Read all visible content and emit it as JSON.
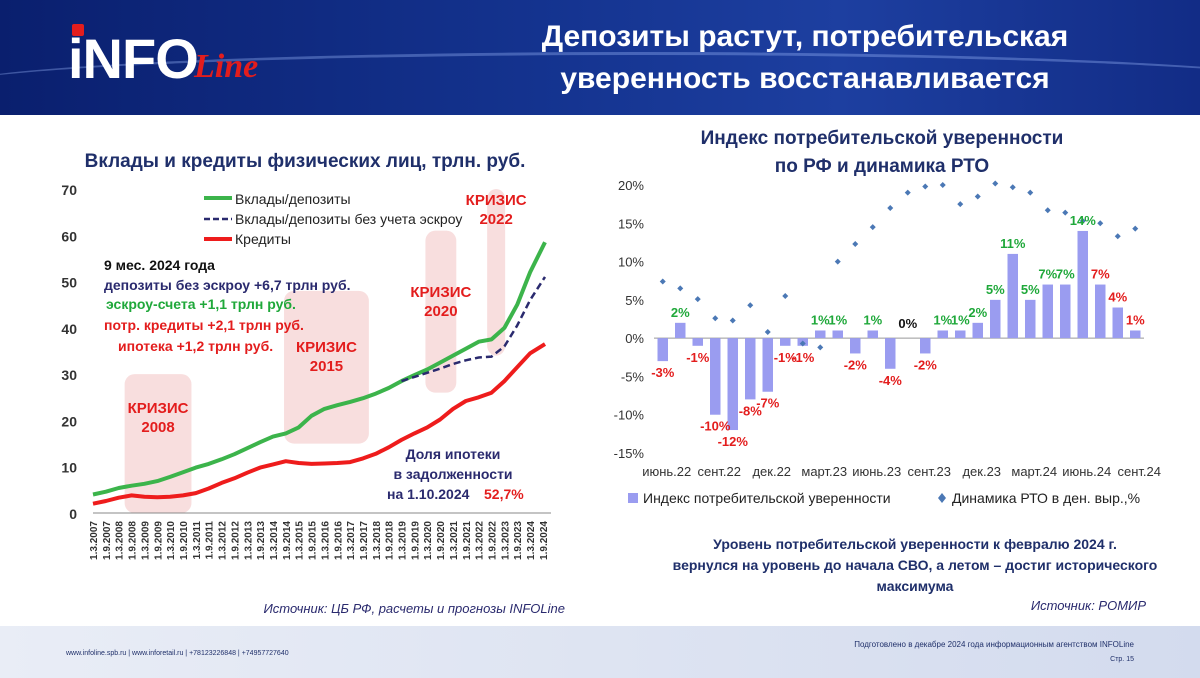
{
  "header": {
    "title_line1": "Депозиты растут, потребительская",
    "title_line2": "уверенность восстанавливается",
    "logo_main": "iNFO",
    "logo_script": "Line"
  },
  "left_chart": {
    "title": "Вклады и кредиты физических лиц, трлн. руб.",
    "ylim": [
      0,
      70
    ],
    "yticks": [
      "0",
      "10",
      "20",
      "30",
      "40",
      "50",
      "60",
      "70"
    ],
    "xticks": [
      "1.3.2007",
      "1.9.2007",
      "1.3.2008",
      "1.9.2008",
      "1.3.2009",
      "1.9.2009",
      "1.3.2010",
      "1.9.2010",
      "1.3.2011",
      "1.9.2011",
      "1.3.2012",
      "1.9.2012",
      "1.3.2013",
      "1.9.2013",
      "1.3.2014",
      "1.9.2014",
      "1.3.2015",
      "1.9.2015",
      "1.3.2016",
      "1.9.2016",
      "1.3.2017",
      "1.9.2017",
      "1.3.2018",
      "1.9.2018",
      "1.3.2019",
      "1.9.2019",
      "1.3.2020",
      "1.9.2020",
      "1.3.2021",
      "1.9.2021",
      "1.3.2022",
      "1.9.2022",
      "1.3.2023",
      "1.9.2023",
      "1.3.2024",
      "1.9.2024"
    ],
    "legend": [
      "Вклады/депозиты",
      "Вклады/депозиты без учета эскроу",
      "Кредиты"
    ],
    "colors": {
      "deposits": "#3cb44b",
      "no_escrow": "#2a2a6e",
      "credits": "#ee1c1c",
      "crisis": "#f6d3d3",
      "annotation": "#2a2a6e",
      "red": "#e31d1d",
      "green": "#1fa83a"
    },
    "series_deposits": [
      [
        2007.17,
        4
      ],
      [
        2007.67,
        4.6
      ],
      [
        2008.17,
        5.4
      ],
      [
        2008.67,
        5.9
      ],
      [
        2009.17,
        6.3
      ],
      [
        2009.67,
        6.9
      ],
      [
        2010.17,
        7.8
      ],
      [
        2010.67,
        8.8
      ],
      [
        2011.17,
        9.8
      ],
      [
        2011.67,
        10.6
      ],
      [
        2012.17,
        11.6
      ],
      [
        2012.67,
        12.7
      ],
      [
        2013.17,
        14
      ],
      [
        2013.67,
        15.3
      ],
      [
        2014.17,
        16.5
      ],
      [
        2014.67,
        17.2
      ],
      [
        2015.17,
        18.5
      ],
      [
        2015.67,
        21
      ],
      [
        2016.17,
        22.5
      ],
      [
        2016.67,
        23.3
      ],
      [
        2017.17,
        24
      ],
      [
        2017.67,
        24.8
      ],
      [
        2018.17,
        25.8
      ],
      [
        2018.67,
        27
      ],
      [
        2019.17,
        28.5
      ],
      [
        2019.67,
        29.8
      ],
      [
        2020.17,
        31
      ],
      [
        2020.67,
        32.5
      ],
      [
        2021.17,
        34
      ],
      [
        2021.67,
        35.5
      ],
      [
        2022.17,
        37
      ],
      [
        2022.67,
        37.5
      ],
      [
        2023.17,
        40
      ],
      [
        2023.67,
        45
      ],
      [
        2024.17,
        52
      ],
      [
        2024.75,
        58.5
      ]
    ],
    "series_no_escrow": [
      [
        2019.17,
        28.5
      ],
      [
        2019.67,
        29.4
      ],
      [
        2020.17,
        30.3
      ],
      [
        2020.67,
        31.2
      ],
      [
        2021.17,
        32.2
      ],
      [
        2021.67,
        33
      ],
      [
        2022.17,
        33.6
      ],
      [
        2022.67,
        33.8
      ],
      [
        2023.17,
        36
      ],
      [
        2023.67,
        40.5
      ],
      [
        2024.17,
        46
      ],
      [
        2024.75,
        51
      ]
    ],
    "series_credits": [
      [
        2007.17,
        2
      ],
      [
        2007.67,
        2.6
      ],
      [
        2008.17,
        3.3
      ],
      [
        2008.67,
        3.8
      ],
      [
        2009.17,
        3.5
      ],
      [
        2009.67,
        3.4
      ],
      [
        2010.17,
        3.5
      ],
      [
        2010.67,
        3.8
      ],
      [
        2011.17,
        4.3
      ],
      [
        2011.67,
        5.3
      ],
      [
        2012.17,
        6.5
      ],
      [
        2012.67,
        7.5
      ],
      [
        2013.17,
        8.7
      ],
      [
        2013.67,
        9.8
      ],
      [
        2014.17,
        10.5
      ],
      [
        2014.67,
        11.2
      ],
      [
        2015.17,
        10.8
      ],
      [
        2015.67,
        10.6
      ],
      [
        2016.17,
        10.7
      ],
      [
        2016.67,
        10.8
      ],
      [
        2017.17,
        11
      ],
      [
        2017.67,
        11.8
      ],
      [
        2018.17,
        12.8
      ],
      [
        2018.67,
        14.2
      ],
      [
        2019.17,
        15.8
      ],
      [
        2019.67,
        17.2
      ],
      [
        2020.17,
        18.5
      ],
      [
        2020.67,
        20.2
      ],
      [
        2021.17,
        22.5
      ],
      [
        2021.67,
        24.2
      ],
      [
        2022.17,
        25
      ],
      [
        2022.67,
        26
      ],
      [
        2023.17,
        28.5
      ],
      [
        2023.67,
        31.5
      ],
      [
        2024.17,
        34.5
      ],
      [
        2024.75,
        36.5
      ]
    ],
    "crises": [
      {
        "label1": "КРИЗИС",
        "label2": "2008",
        "x0": 2008.4,
        "x1": 2011.0,
        "y0": 0,
        "y1": 30
      },
      {
        "label1": "КРИЗИС",
        "label2": "2015",
        "x0": 2014.6,
        "x1": 2017.9,
        "y0": 15,
        "y1": 48
      },
      {
        "label1": "КРИЗИС",
        "label2": "2020",
        "x0": 2020.1,
        "x1": 2021.3,
        "y0": 26,
        "y1": 61
      },
      {
        "label1": "КРИЗИС",
        "label2": "2022",
        "x0": 2022.5,
        "x1": 2023.2,
        "y0": 34,
        "y1": 70
      }
    ],
    "notes": {
      "head": "9 мес. 2024 года",
      "line1": "депозиты без эскроу +6,7 трлн руб.",
      "line2": "эскроу-счета +1,1 трлн руб.",
      "line3": "потр. кредиты +2,1 трлн руб.",
      "line4": "ипотека +1,2 трлн руб.",
      "mort1": "Доля ипотеки",
      "mort2": "в задолженности",
      "mort3": "на 1.10.2024",
      "mort_value": "52,7%"
    },
    "source": "Источник: ЦБ РФ, расчеты и прогнозы INFOLine"
  },
  "right_chart": {
    "title1": "Индекс потребительской уверенности",
    "title2": "по РФ и динамика РТО",
    "ylim": [
      -15,
      20
    ],
    "yticks": [
      "-15%",
      "-10%",
      "-5%",
      "0%",
      "5%",
      "10%",
      "15%",
      "20%"
    ],
    "xticks": [
      {
        "label": "июнь.22",
        "i": 0
      },
      {
        "label": "сент.22",
        "i": 3
      },
      {
        "label": "дек.22",
        "i": 6
      },
      {
        "label": "март.23",
        "i": 9
      },
      {
        "label": "июнь.23",
        "i": 12
      },
      {
        "label": "сент.23",
        "i": 15
      },
      {
        "label": "дек.23",
        "i": 18
      },
      {
        "label": "март.24",
        "i": 21
      },
      {
        "label": "июнь.24",
        "i": 24
      },
      {
        "label": "сент.24",
        "i": 27
      }
    ],
    "bars": [
      -3,
      2,
      -1,
      -10,
      -12,
      -8,
      -7,
      -1,
      -1,
      1,
      1,
      -2,
      1,
      -4,
      0,
      -2,
      1,
      1,
      2,
      5,
      11,
      5,
      7,
      7,
      14,
      7,
      4,
      1
    ],
    "rto": [
      7.4,
      6.5,
      5.1,
      2.6,
      2.3,
      4.3,
      0.8,
      5.5,
      -0.7,
      -1.2,
      10,
      12.3,
      14.5,
      17,
      19,
      19.8,
      20,
      17.5,
      18.5,
      20.2,
      19.7,
      19,
      16.7,
      16.4,
      15.3,
      15,
      13.3,
      14.3
    ],
    "bar_labels": [
      {
        "i": 0,
        "t": "-3%",
        "c": "red"
      },
      {
        "i": 1,
        "t": "2%",
        "c": "green"
      },
      {
        "i": 2,
        "t": "-1%",
        "c": "red"
      },
      {
        "i": 3,
        "t": "-10%",
        "c": "red"
      },
      {
        "i": 4,
        "t": "-12%",
        "c": "red"
      },
      {
        "i": 5,
        "t": "-8%",
        "c": "red"
      },
      {
        "i": 6,
        "t": "-7%",
        "c": "red"
      },
      {
        "i": 7,
        "t": "-1%",
        "c": "red"
      },
      {
        "i": 8,
        "t": "-1%",
        "c": "red"
      },
      {
        "i": 9,
        "t": "1%",
        "c": "green"
      },
      {
        "i": 10,
        "t": "1%",
        "c": "green"
      },
      {
        "i": 11,
        "t": "-2%",
        "c": "red"
      },
      {
        "i": 12,
        "t": "1%",
        "c": "green"
      },
      {
        "i": 13,
        "t": "-4%",
        "c": "red"
      },
      {
        "i": 14,
        "t": "0%",
        "c": "black"
      },
      {
        "i": 15,
        "t": "-2%",
        "c": "red"
      },
      {
        "i": 16,
        "t": "1%",
        "c": "green"
      },
      {
        "i": 17,
        "t": "1%",
        "c": "green"
      },
      {
        "i": 18,
        "t": "2%",
        "c": "green"
      },
      {
        "i": 19,
        "t": "5%",
        "c": "green"
      },
      {
        "i": 20,
        "t": "11%",
        "c": "green"
      },
      {
        "i": 21,
        "t": "5%",
        "c": "green"
      },
      {
        "i": 22,
        "t": "7%",
        "c": "green"
      },
      {
        "i": 23,
        "t": "7%",
        "c": "green"
      },
      {
        "i": 24,
        "t": "14%",
        "c": "green"
      },
      {
        "i": 25,
        "t": "7%",
        "c": "red"
      },
      {
        "i": 26,
        "t": "4%",
        "c": "red"
      },
      {
        "i": 27,
        "t": "1%",
        "c": "red"
      }
    ],
    "legend": [
      "Индекс потребительской уверенности",
      "Динамика РТО в ден. выр.,%"
    ],
    "colors": {
      "bar": "#9a9cf0",
      "rto": "#4b78b5",
      "red": "#e31d1d",
      "green": "#1fa83a"
    },
    "note1": "Уровень потребительской уверенности к февралю 2024 г.",
    "note2": "вернулся на уровень до начала СВО, а летом – достиг исторического",
    "note3": "максимума",
    "source": "Источник: РОМИР"
  },
  "footer": {
    "contacts": "www.infoline.spb.ru | www.inforetail.ru | +78123226848 | +74957727640",
    "prepared": "Подготовлено в декабре 2024 года информационным агентством INFOLine",
    "page": "Стр. 15"
  }
}
